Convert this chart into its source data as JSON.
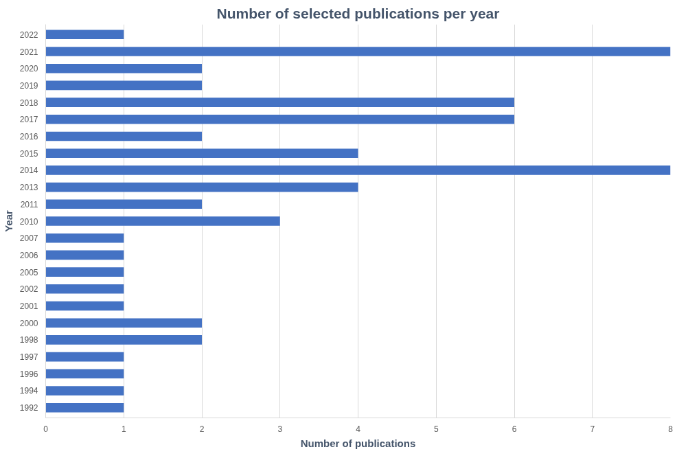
{
  "chart_data": {
    "type": "bar",
    "orientation": "horizontal",
    "title": "Number of selected publications per year",
    "xlabel": "Number of publications",
    "ylabel": "Year",
    "categories": [
      "2022",
      "2021",
      "2020",
      "2019",
      "2018",
      "2017",
      "2016",
      "2015",
      "2014",
      "2013",
      "2011",
      "2010",
      "2007",
      "2006",
      "2005",
      "2002",
      "2001",
      "2000",
      "1998",
      "1997",
      "1996",
      "1994",
      "1992"
    ],
    "values": [
      1,
      8,
      2,
      2,
      6,
      6,
      2,
      4,
      8,
      4,
      2,
      3,
      1,
      1,
      1,
      1,
      1,
      2,
      2,
      1,
      1,
      1,
      1
    ],
    "color": "#4472c4",
    "xlim": [
      0,
      8
    ],
    "xticks": [
      0,
      1,
      2,
      3,
      4,
      5,
      6,
      7,
      8
    ],
    "grid": "x"
  }
}
